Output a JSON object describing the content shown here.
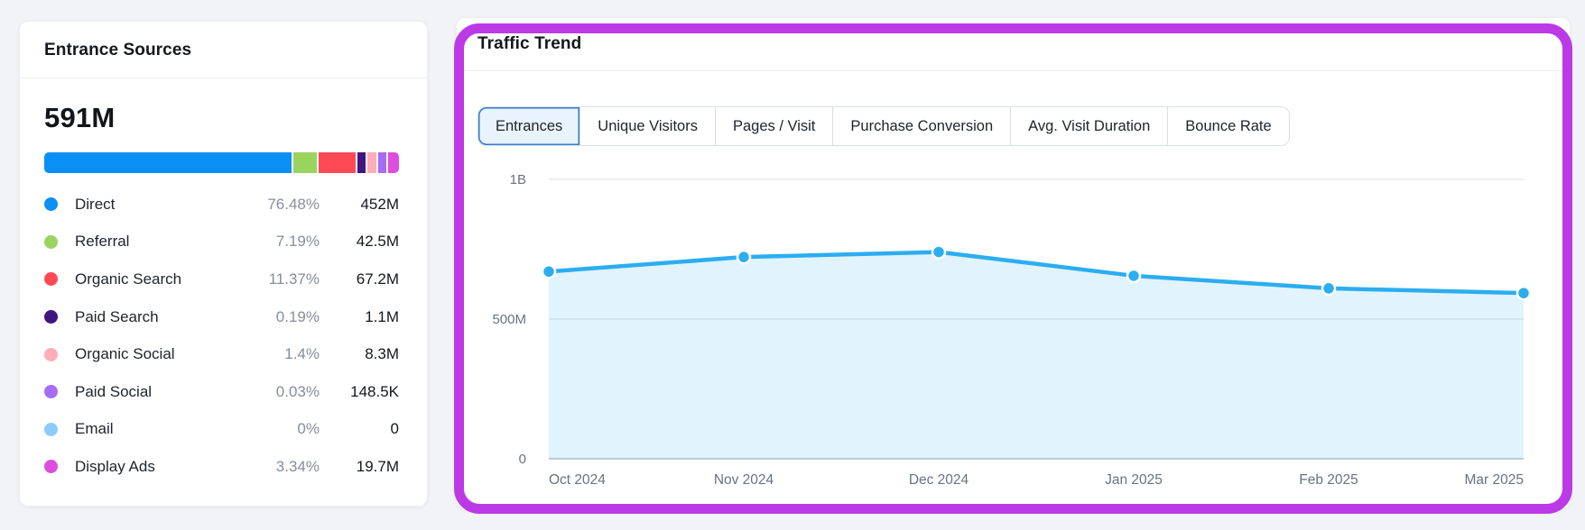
{
  "annotation": {
    "highlight_color": "#BB3AE6"
  },
  "entrance_sources": {
    "title": "Entrance Sources",
    "total_label": "591M"
  },
  "traffic_trend": {
    "title": "Traffic Trend",
    "tabs": [
      {
        "label": "Entrances",
        "selected": true
      },
      {
        "label": "Unique Visitors",
        "selected": false
      },
      {
        "label": "Pages / Visit",
        "selected": false
      },
      {
        "label": "Purchase Conversion",
        "selected": false
      },
      {
        "label": "Avg. Visit Duration",
        "selected": false
      },
      {
        "label": "Bounce Rate",
        "selected": false
      }
    ]
  },
  "chart_data": [
    {
      "id": "entrance-sources-breakdown",
      "type": "bar",
      "title": "Entrance Sources",
      "total_label": "591M",
      "categories": [
        "Direct",
        "Referral",
        "Organic Search",
        "Paid Search",
        "Organic Social",
        "Paid Social",
        "Email",
        "Display Ads"
      ],
      "percents": [
        76.48,
        7.19,
        11.37,
        0.19,
        1.4,
        0.03,
        0,
        3.34
      ],
      "percent_labels": [
        "76.48%",
        "7.19%",
        "11.37%",
        "0.19%",
        "1.4%",
        "0.03%",
        "0%",
        "3.34%"
      ],
      "value_labels": [
        "452M",
        "42.5M",
        "67.2M",
        "1.1M",
        "8.3M",
        "148.5K",
        "0",
        "19.7M"
      ],
      "colors": [
        "#0A90F5",
        "#9BD35F",
        "#FF4A55",
        "#41157F",
        "#FFADB9",
        "#A76CF4",
        "#8FCBF9",
        "#DE4DDF"
      ]
    },
    {
      "id": "traffic-trend",
      "type": "area",
      "title": "Traffic Trend",
      "x": [
        "Oct 2024",
        "Nov 2024",
        "Dec 2024",
        "Jan 2025",
        "Feb 2025",
        "Mar 2025"
      ],
      "series": [
        {
          "name": "Entrances",
          "values_millions": [
            670,
            722,
            740,
            655,
            610,
            593
          ]
        }
      ],
      "ylabel": "",
      "xlabel": "",
      "ylim_millions": [
        0,
        1000
      ],
      "yticks": [
        {
          "value_millions": 0,
          "label": "0"
        },
        {
          "value_millions": 500,
          "label": "500M"
        },
        {
          "value_millions": 1000,
          "label": "1B"
        }
      ],
      "grid": true,
      "legend_visible": false,
      "line_color": "#2CADF0",
      "fill_color": "#2CADF0",
      "fill_opacity": 0.14,
      "axis_label_color": "#6A7280",
      "gridline_color": "#E5E8ED",
      "baseline_color": "#C8CED6"
    }
  ]
}
